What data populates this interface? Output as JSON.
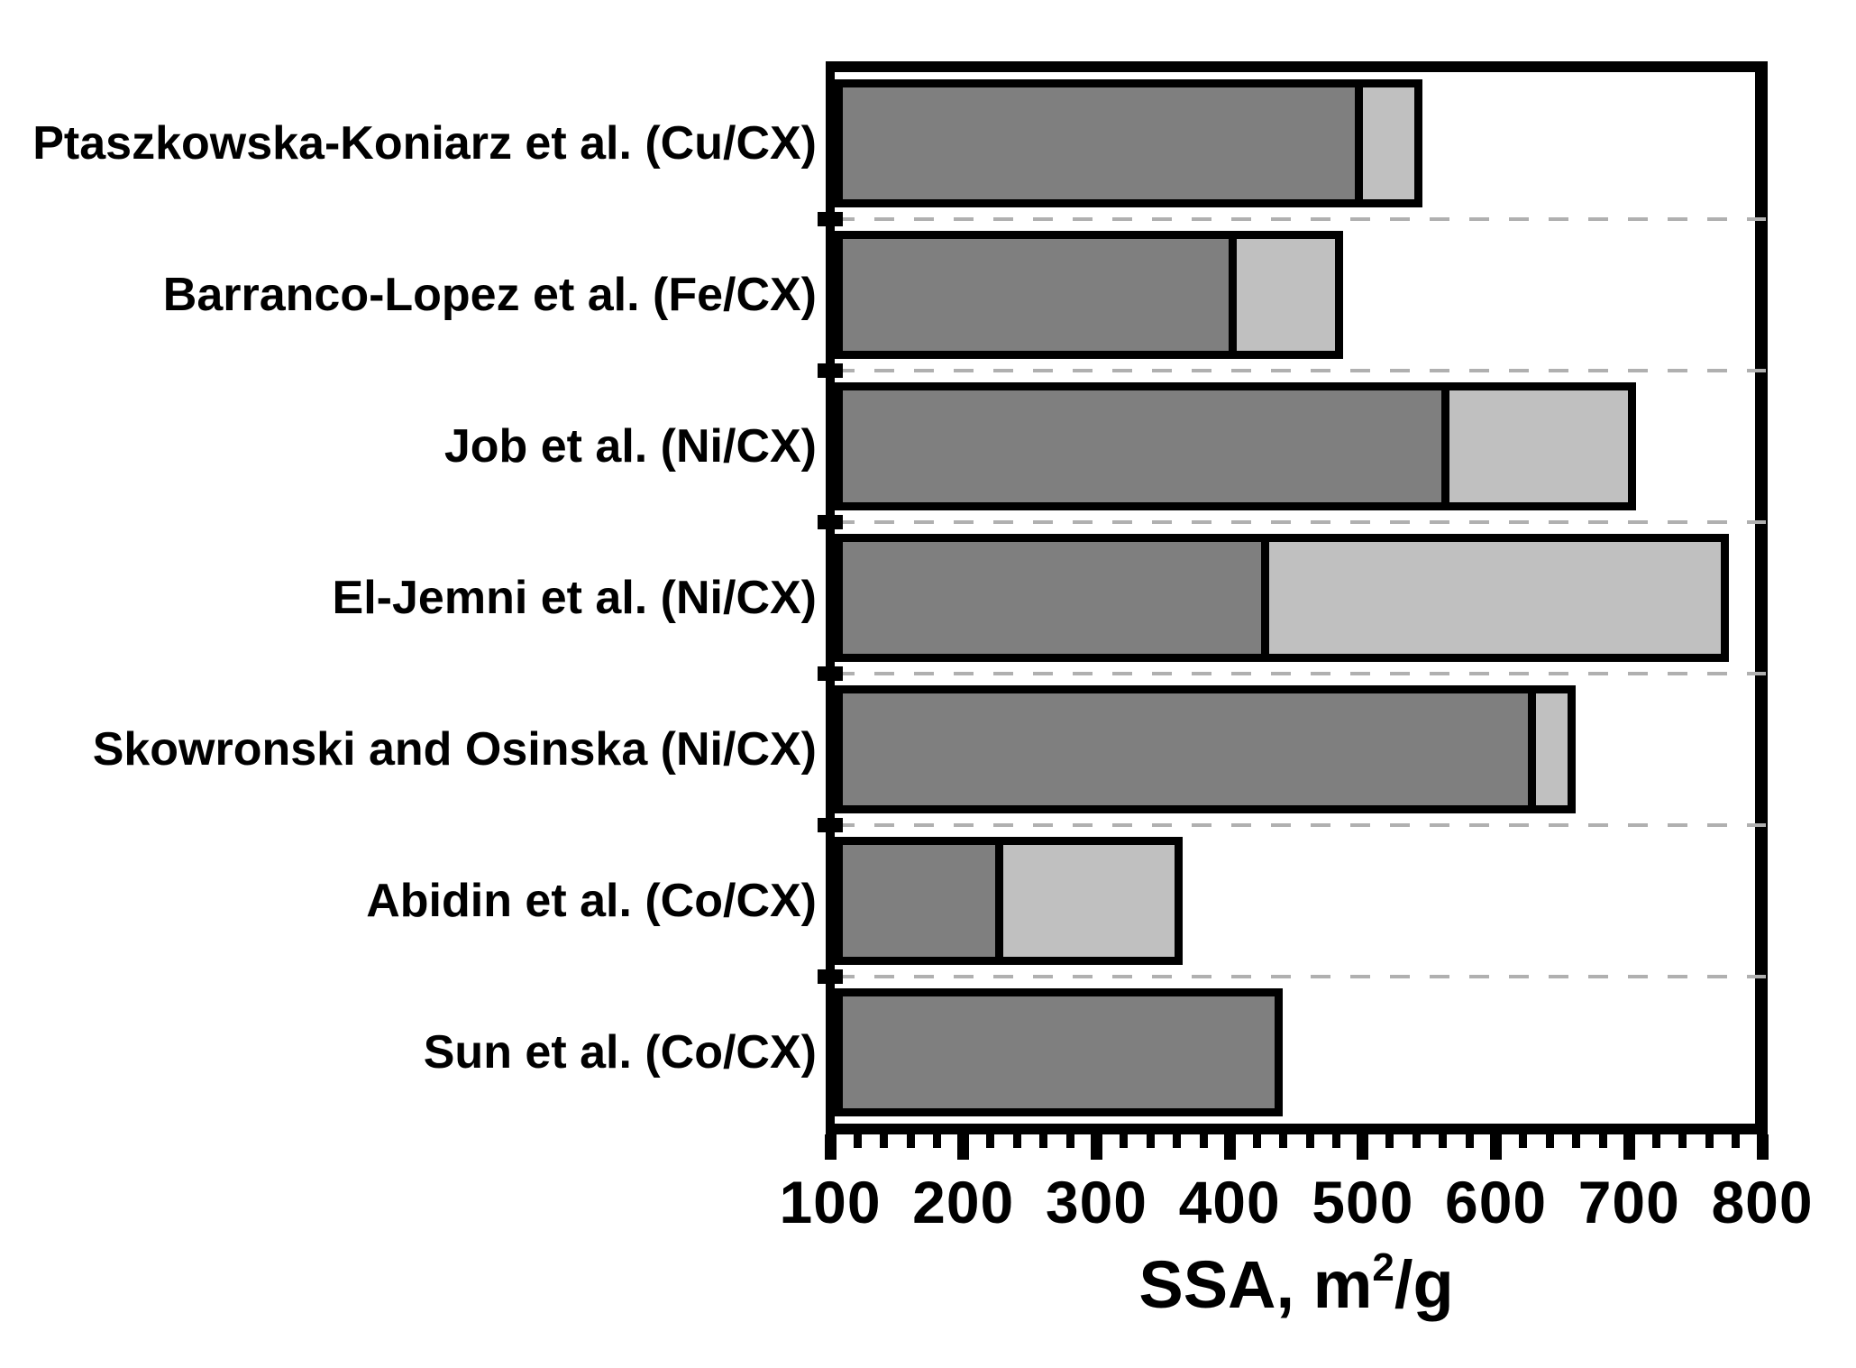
{
  "chart_data": {
    "type": "bar",
    "orientation": "horizontal",
    "stacked": true,
    "title": "",
    "categories": [
      "Ptaszkowska-Koniarz et al. (Cu/CX)",
      "Barranco-Lopez et al. (Fe/CX)",
      "Job et al. (Ni/CX)",
      "El-Jemni et al. (Ni/CX)",
      "Skowronski and Osinska (Ni/CX)",
      "Abidin et al. (Co/CX)",
      "Sun et al. (Co/CX)"
    ],
    "bar_start": 100,
    "series": [
      {
        "name": "dark-gray-segment",
        "color": "#7f7f7f",
        "end_values": [
          500,
          405,
          565,
          430,
          630,
          230,
          440
        ]
      },
      {
        "name": "light-gray-segment",
        "color": "#c0c0c0",
        "end_values": [
          545,
          485,
          705,
          775,
          660,
          365,
          440
        ]
      }
    ],
    "xlabel": "SSA, m2/g",
    "xlabel_parts": {
      "prefix": "SSA, m",
      "superscript": "2",
      "suffix": "/g"
    },
    "x_ticks": [
      100,
      200,
      300,
      400,
      500,
      600,
      700,
      800
    ],
    "x_minor_tick_step": 20,
    "xlim": [
      100,
      800
    ],
    "ylabel": "",
    "grid": "dashed horizontal separators between categories",
    "legend": "none"
  },
  "colors": {
    "dark_segment": "#7f7f7f",
    "light_segment": "#c0c0c0",
    "frame": "#000000",
    "gridline": "#b0b0b0",
    "background": "#ffffff"
  }
}
